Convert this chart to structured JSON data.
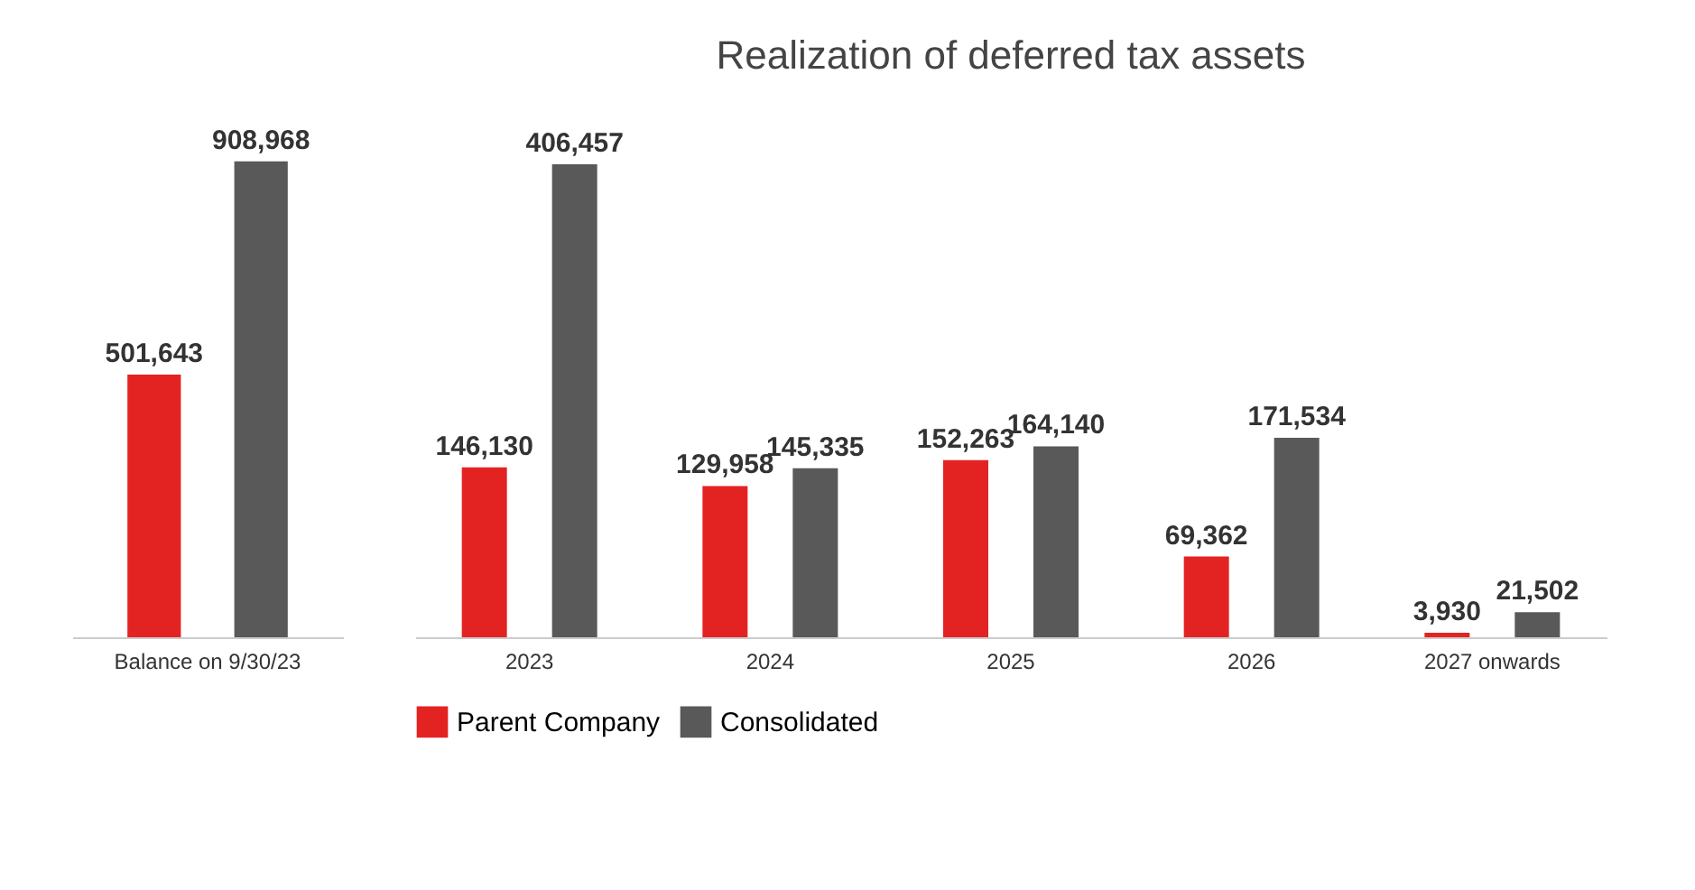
{
  "chart_data": [
    {
      "type": "bar",
      "categories": [
        "Balance on 9/30/23"
      ],
      "series": [
        {
          "color": "#e32322",
          "values": [
            501643
          ],
          "value_labels": [
            "501,643"
          ]
        },
        {
          "color": "#595959",
          "values": [
            908968
          ],
          "value_labels": [
            "908,968"
          ]
        }
      ],
      "legend": false
    },
    {
      "type": "bar",
      "title": "Realization of deferred tax assets",
      "categories": [
        "2023",
        "2024",
        "2025",
        "2026",
        "2027 onwards"
      ],
      "series": [
        {
          "name": "Parent Company",
          "color": "#e32322",
          "values": [
            146130,
            129958,
            152263,
            69362,
            3930
          ],
          "value_labels": [
            "146,130",
            "129,958",
            "152,263",
            "69,362",
            "3,930"
          ]
        },
        {
          "name": "Consolidated",
          "color": "#595959",
          "values": [
            406457,
            145335,
            164140,
            171534,
            21502
          ],
          "value_labels": [
            "406,457",
            "145,335",
            "164,140",
            "171,534",
            "21,502"
          ]
        }
      ],
      "legend": "bottom"
    }
  ]
}
